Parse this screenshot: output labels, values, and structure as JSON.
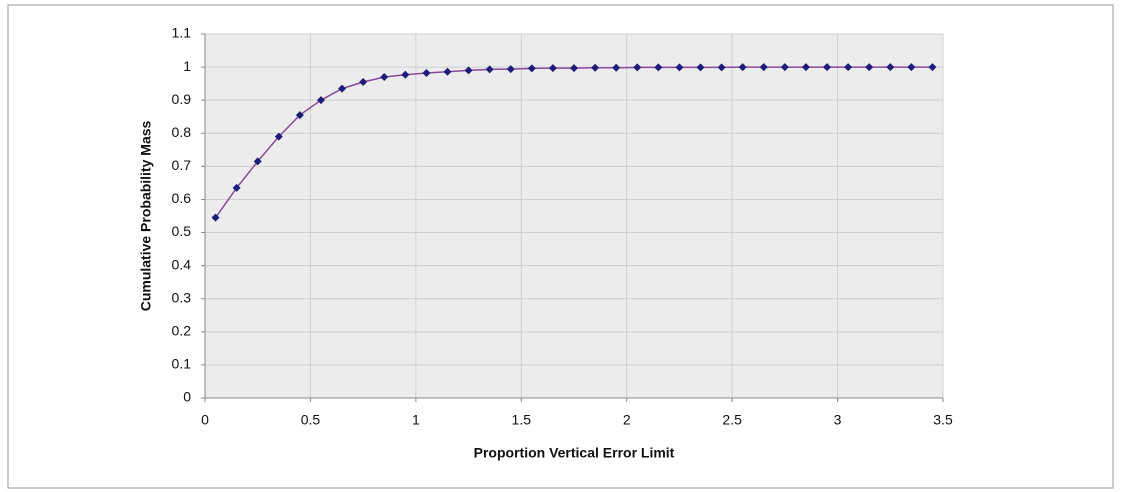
{
  "chart_data": {
    "type": "line",
    "xlabel": "Proportion Vertical Error Limit",
    "ylabel": "Cumulative Probability Mass",
    "x": [
      0.05,
      0.15,
      0.25,
      0.35,
      0.45,
      0.55,
      0.65,
      0.75,
      0.85,
      0.95,
      1.05,
      1.15,
      1.25,
      1.35,
      1.45,
      1.55,
      1.65,
      1.75,
      1.85,
      1.95,
      2.05,
      2.15,
      2.25,
      2.35,
      2.45,
      2.55,
      2.65,
      2.75,
      2.85,
      2.95,
      3.05,
      3.15,
      3.25,
      3.35,
      3.45
    ],
    "series": [
      {
        "color": "#1c1c7a",
        "line_color": "#8a4a9a",
        "values": [
          0.545,
          0.635,
          0.715,
          0.79,
          0.855,
          0.9,
          0.935,
          0.955,
          0.97,
          0.977,
          0.982,
          0.986,
          0.99,
          0.993,
          0.994,
          0.996,
          0.997,
          0.997,
          0.998,
          0.998,
          0.999,
          0.999,
          0.999,
          0.999,
          0.999,
          1.0,
          1.0,
          1.0,
          1.0,
          1.0,
          1.0,
          1.0,
          1.0,
          1.0,
          1.0
        ]
      }
    ],
    "xlim": [
      0,
      3.5
    ],
    "xticks": [
      0,
      0.5,
      1,
      1.5,
      2,
      2.5,
      3,
      3.5
    ],
    "ylim": [
      0,
      1.1
    ],
    "yticks": [
      0,
      0.1,
      0.2,
      0.3,
      0.4,
      0.5,
      0.6,
      0.7,
      0.8,
      0.9,
      1,
      1.1
    ],
    "grid": true
  }
}
